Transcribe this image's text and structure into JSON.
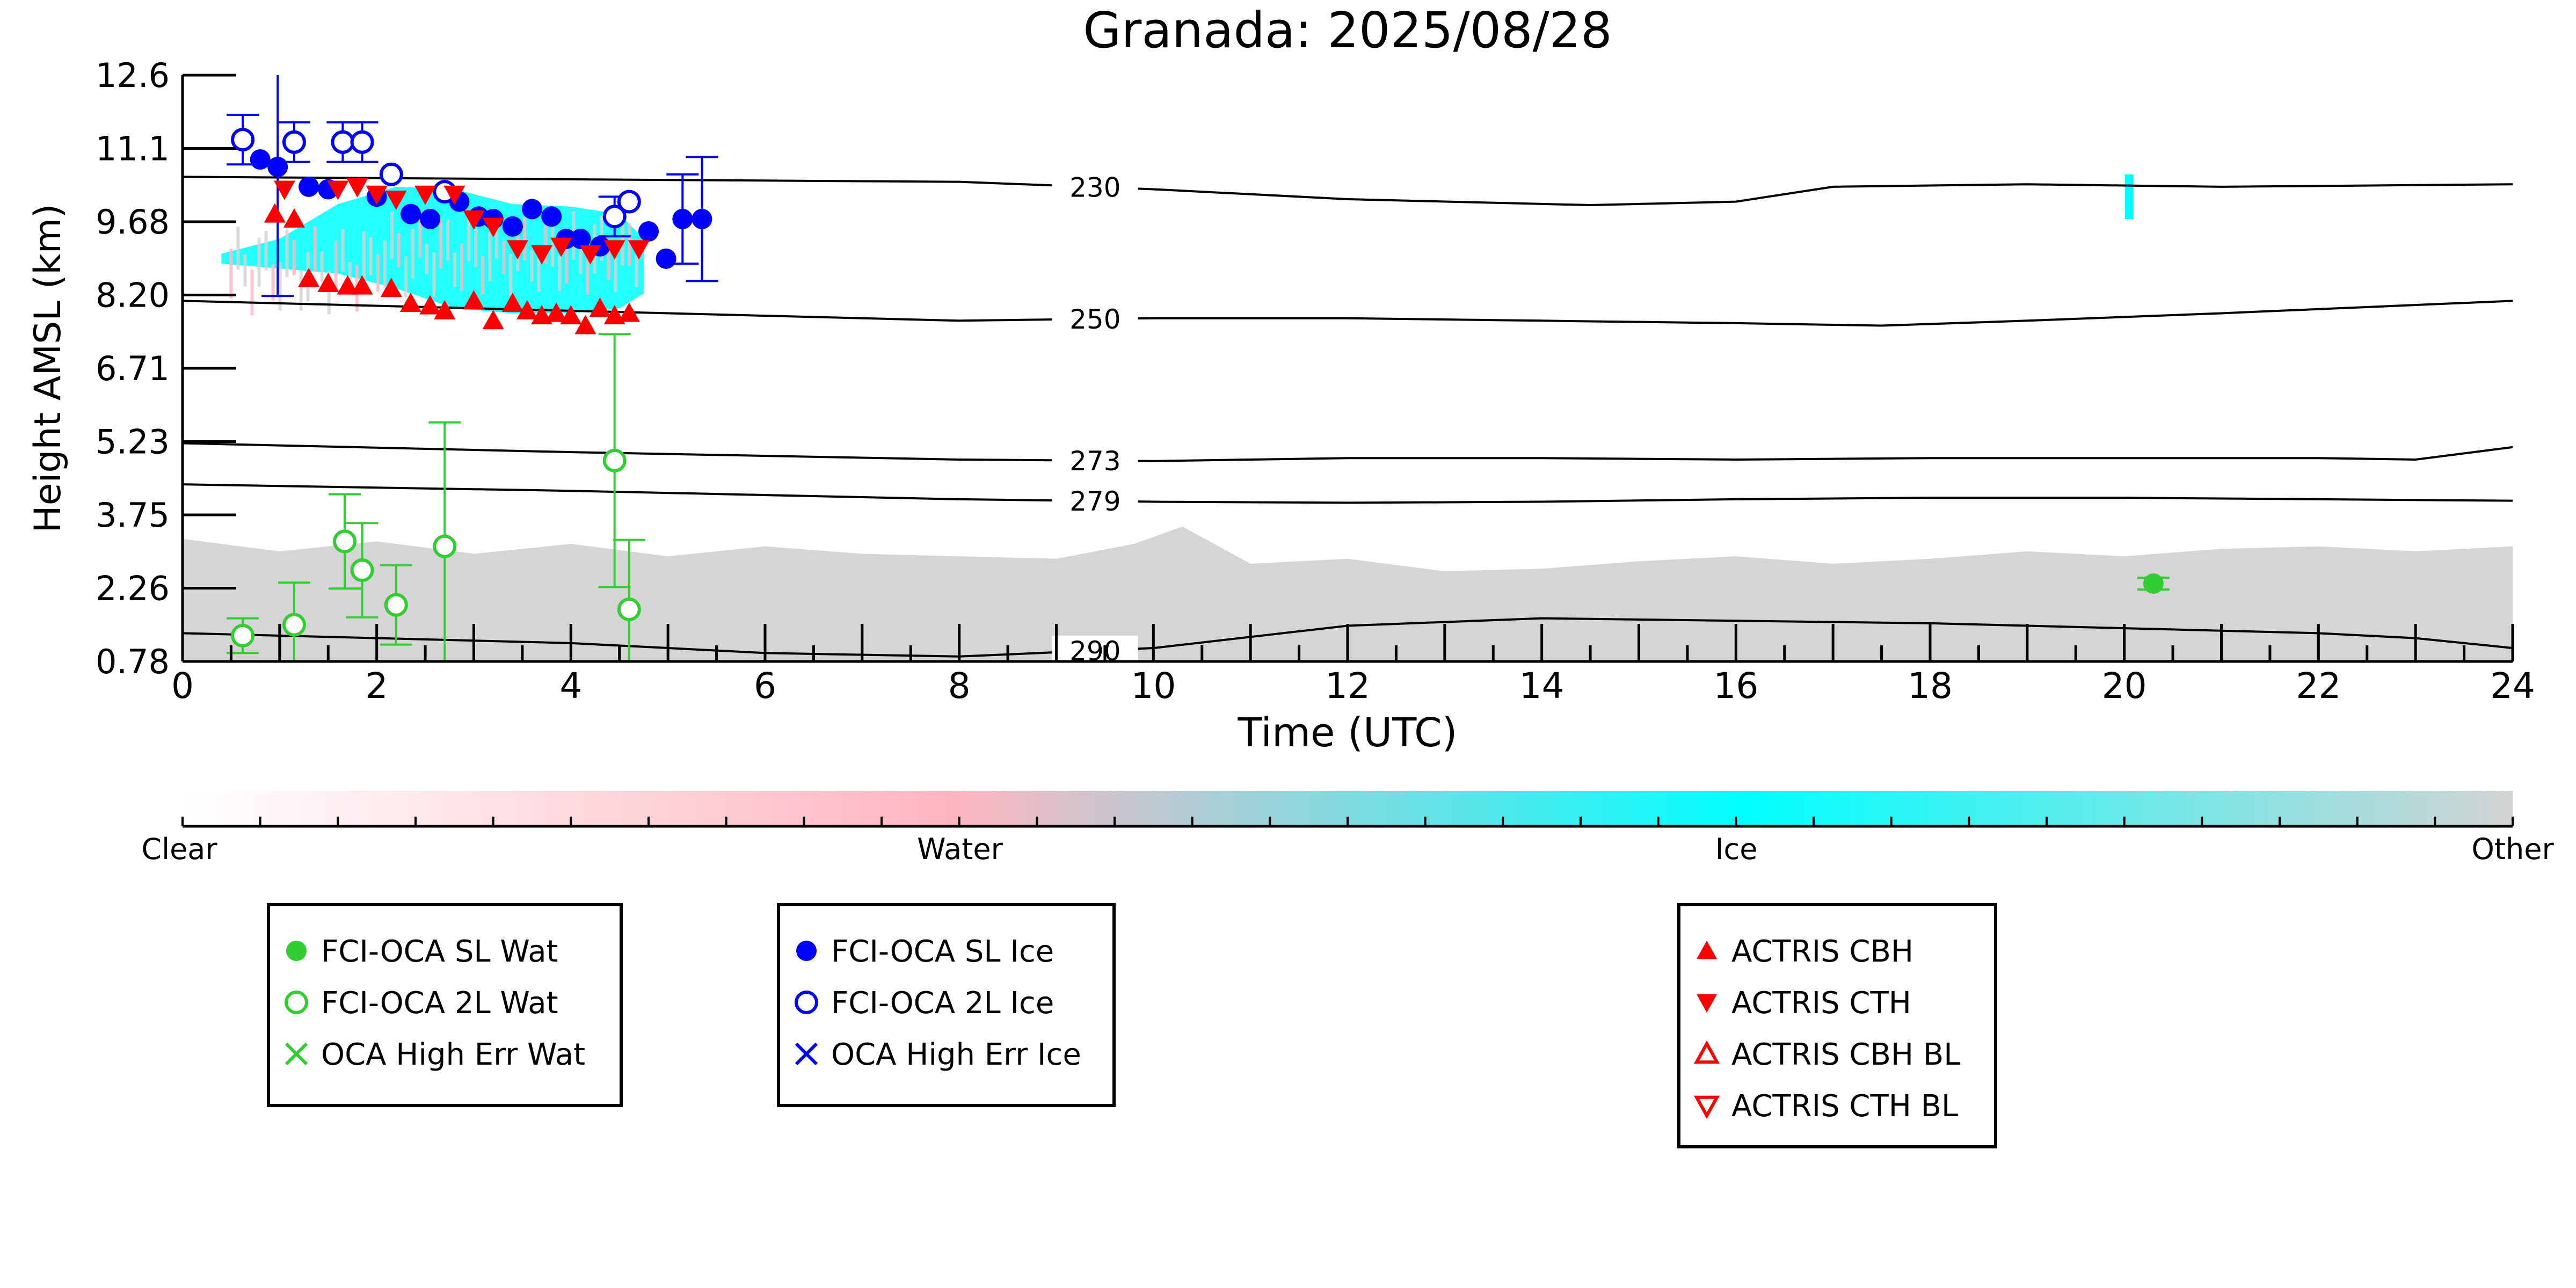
{
  "chart_data": {
    "type": "scatter",
    "title": "Granada: 2025/08/28",
    "xlabel": "Time (UTC)",
    "ylabel": "Height AMSL (km)",
    "xlim": [
      0,
      24
    ],
    "ylim": [
      0.78,
      12.6
    ],
    "x_ticks": [
      "0",
      "2",
      "4",
      "6",
      "8",
      "10",
      "12",
      "14",
      "16",
      "18",
      "20",
      "22",
      "24"
    ],
    "y_ticks": [
      "0.78",
      "2.26",
      "3.75",
      "5.23",
      "6.71",
      "8.20",
      "9.68",
      "11.1",
      "12.6"
    ],
    "colorbar": {
      "labels": [
        "Clear",
        "Water",
        "Ice",
        "Other"
      ],
      "colors": [
        "#ffffff",
        "#ffb6c1",
        "#00ffff",
        "#d3d3d3"
      ]
    },
    "isotherms": [
      {
        "label": "230",
        "label_x": 9.4,
        "points": [
          [
            0,
            10.55
          ],
          [
            4,
            10.5
          ],
          [
            8,
            10.45
          ],
          [
            10,
            10.3
          ],
          [
            12,
            10.1
          ],
          [
            14.5,
            9.98
          ],
          [
            16,
            10.05
          ],
          [
            17,
            10.35
          ],
          [
            19,
            10.4
          ],
          [
            21,
            10.35
          ],
          [
            24,
            10.4
          ]
        ]
      },
      {
        "label": "250",
        "label_x": 9.4,
        "points": [
          [
            0,
            8.05
          ],
          [
            4,
            7.85
          ],
          [
            8,
            7.65
          ],
          [
            10,
            7.7
          ],
          [
            12,
            7.7
          ],
          [
            14,
            7.65
          ],
          [
            16,
            7.6
          ],
          [
            17.5,
            7.55
          ],
          [
            19,
            7.65
          ],
          [
            21,
            7.8
          ],
          [
            24,
            8.05
          ]
        ]
      },
      {
        "label": "273",
        "label_x": 9.4,
        "points": [
          [
            0,
            5.18
          ],
          [
            4,
            5.0
          ],
          [
            8,
            4.85
          ],
          [
            10,
            4.82
          ],
          [
            12,
            4.88
          ],
          [
            14,
            4.88
          ],
          [
            16,
            4.85
          ],
          [
            18,
            4.88
          ],
          [
            20,
            4.88
          ],
          [
            22,
            4.88
          ],
          [
            23,
            4.85
          ],
          [
            24,
            5.1
          ]
        ]
      },
      {
        "label": "279",
        "label_x": 9.4,
        "points": [
          [
            0,
            4.35
          ],
          [
            4,
            4.22
          ],
          [
            8,
            4.05
          ],
          [
            10,
            4.0
          ],
          [
            12,
            3.98
          ],
          [
            14,
            4.0
          ],
          [
            16,
            4.05
          ],
          [
            18,
            4.08
          ],
          [
            20,
            4.08
          ],
          [
            22,
            4.05
          ],
          [
            24,
            4.02
          ]
        ]
      },
      {
        "label": "290",
        "label_x": 9.4,
        "points": [
          [
            0,
            1.35
          ],
          [
            4,
            1.15
          ],
          [
            6,
            0.95
          ],
          [
            8,
            0.88
          ],
          [
            10,
            1.05
          ],
          [
            12,
            1.5
          ],
          [
            14,
            1.65
          ],
          [
            16,
            1.6
          ],
          [
            18,
            1.55
          ],
          [
            20,
            1.45
          ],
          [
            22,
            1.35
          ],
          [
            23,
            1.25
          ],
          [
            24,
            1.05
          ]
        ]
      }
    ],
    "background": {
      "other_top": [
        [
          0,
          3.25
        ],
        [
          1,
          3.0
        ],
        [
          2,
          3.2
        ],
        [
          3,
          2.95
        ],
        [
          4,
          3.15
        ],
        [
          5,
          2.9
        ],
        [
          6,
          3.1
        ],
        [
          7,
          2.95
        ],
        [
          8,
          2.9
        ],
        [
          9,
          2.85
        ],
        [
          9.8,
          3.15
        ],
        [
          10.3,
          3.5
        ],
        [
          11,
          2.75
        ],
        [
          12,
          2.85
        ],
        [
          13,
          2.6
        ],
        [
          14,
          2.65
        ],
        [
          15,
          2.8
        ],
        [
          16,
          2.9
        ],
        [
          17,
          2.75
        ],
        [
          18,
          2.85
        ],
        [
          19,
          3.0
        ],
        [
          20,
          2.9
        ],
        [
          21,
          3.05
        ],
        [
          22,
          3.1
        ],
        [
          23,
          3.0
        ],
        [
          24,
          3.1
        ]
      ],
      "ice_top": [
        [
          0.4,
          9.0
        ],
        [
          1,
          9.3
        ],
        [
          1.6,
          10.0
        ],
        [
          2.2,
          10.35
        ],
        [
          2.8,
          10.3
        ],
        [
          3.4,
          10.0
        ],
        [
          4.0,
          9.95
        ],
        [
          4.5,
          9.8
        ],
        [
          4.75,
          9.3
        ]
      ],
      "ice_bottom": [
        [
          0.4,
          8.8
        ],
        [
          1,
          8.7
        ],
        [
          1.6,
          8.6
        ],
        [
          2.2,
          8.3
        ],
        [
          2.8,
          7.9
        ],
        [
          3.4,
          7.8
        ],
        [
          4.0,
          7.8
        ],
        [
          4.5,
          7.9
        ],
        [
          4.75,
          8.2
        ]
      ],
      "ice_patch_20h": {
        "x": 20.05,
        "y_top": 10.6,
        "y_bottom": 9.7
      }
    },
    "series": [
      {
        "name": "FCI-OCA SL Wat",
        "marker": "filled-circle",
        "color": "#32cd32",
        "points": [
          {
            "x": 20.3,
            "y": 2.35,
            "err": 0.12
          }
        ]
      },
      {
        "name": "FCI-OCA 2L Wat",
        "marker": "open-circle",
        "color": "#32cd32",
        "points": [
          {
            "x": 0.62,
            "y": 1.3,
            "err": 0.35
          },
          {
            "x": 1.15,
            "y": 1.52,
            "err": 0.85
          },
          {
            "x": 1.67,
            "y": 3.2,
            "err": 0.95
          },
          {
            "x": 1.85,
            "y": 2.62,
            "err": 0.95
          },
          {
            "x": 2.2,
            "y": 1.92,
            "err": 0.8
          },
          {
            "x": 2.7,
            "y": 3.1,
            "err": 2.5
          },
          {
            "x": 4.45,
            "y": 4.83,
            "err": 2.55
          },
          {
            "x": 4.6,
            "y": 1.83,
            "err": 1.4
          }
        ]
      },
      {
        "name": "OCA High Err Wat",
        "marker": "x",
        "color": "#32cd32",
        "points": []
      },
      {
        "name": "FCI-OCA SL Ice",
        "marker": "filled-circle",
        "color": "#0000ff",
        "points": [
          {
            "x": 0.8,
            "y": 10.9,
            "err": 0
          },
          {
            "x": 0.98,
            "y": 10.75,
            "err": 2.6
          },
          {
            "x": 1.3,
            "y": 10.35,
            "err": 0
          },
          {
            "x": 1.5,
            "y": 10.3,
            "err": 0
          },
          {
            "x": 2.0,
            "y": 10.15,
            "err": 0
          },
          {
            "x": 2.35,
            "y": 9.8,
            "err": 0
          },
          {
            "x": 2.55,
            "y": 9.7,
            "err": 0
          },
          {
            "x": 2.85,
            "y": 10.05,
            "err": 0
          },
          {
            "x": 3.05,
            "y": 9.75,
            "err": 0
          },
          {
            "x": 3.2,
            "y": 9.7,
            "err": 0
          },
          {
            "x": 3.4,
            "y": 9.55,
            "err": 0
          },
          {
            "x": 3.6,
            "y": 9.9,
            "err": 0
          },
          {
            "x": 3.8,
            "y": 9.75,
            "err": 0
          },
          {
            "x": 3.95,
            "y": 9.3,
            "err": 0
          },
          {
            "x": 4.1,
            "y": 9.3,
            "err": 0
          },
          {
            "x": 4.3,
            "y": 9.15,
            "err": 0
          },
          {
            "x": 4.8,
            "y": 9.45,
            "err": 0
          },
          {
            "x": 4.98,
            "y": 8.9,
            "err": 0
          },
          {
            "x": 5.15,
            "y": 9.7,
            "err": 0.9
          },
          {
            "x": 5.35,
            "y": 9.7,
            "err": 1.25
          }
        ]
      },
      {
        "name": "FCI-OCA 2L Ice",
        "marker": "open-circle",
        "color": "#0000ff",
        "points": [
          {
            "x": 0.62,
            "y": 11.3,
            "err": 0.5
          },
          {
            "x": 1.15,
            "y": 11.25,
            "err": 0.4
          },
          {
            "x": 1.65,
            "y": 11.25,
            "err": 0.4
          },
          {
            "x": 1.85,
            "y": 11.25,
            "err": 0.4
          },
          {
            "x": 2.15,
            "y": 10.6,
            "err": 0
          },
          {
            "x": 2.7,
            "y": 10.25,
            "err": 0
          },
          {
            "x": 4.45,
            "y": 9.75,
            "err": 0.4
          },
          {
            "x": 4.6,
            "y": 10.05,
            "err": 0
          }
        ]
      },
      {
        "name": "OCA High Err Ice",
        "marker": "x",
        "color": "#0000ff",
        "points": []
      },
      {
        "name": "ACTRIS CBH",
        "marker": "triangle-up",
        "color": "#ff0000",
        "points": [
          {
            "x": 0.95,
            "y": 9.8
          },
          {
            "x": 1.15,
            "y": 9.7
          },
          {
            "x": 1.3,
            "y": 8.5
          },
          {
            "x": 1.5,
            "y": 8.4
          },
          {
            "x": 1.7,
            "y": 8.35
          },
          {
            "x": 1.85,
            "y": 8.35
          },
          {
            "x": 2.15,
            "y": 8.3
          },
          {
            "x": 2.35,
            "y": 8.0
          },
          {
            "x": 2.55,
            "y": 7.95
          },
          {
            "x": 2.7,
            "y": 7.85
          },
          {
            "x": 3.0,
            "y": 8.05
          },
          {
            "x": 3.2,
            "y": 7.65
          },
          {
            "x": 3.4,
            "y": 8.0
          },
          {
            "x": 3.55,
            "y": 7.85
          },
          {
            "x": 3.7,
            "y": 7.75
          },
          {
            "x": 3.85,
            "y": 7.8
          },
          {
            "x": 4.0,
            "y": 7.75
          },
          {
            "x": 4.15,
            "y": 7.55
          },
          {
            "x": 4.3,
            "y": 7.9
          },
          {
            "x": 4.45,
            "y": 7.75
          },
          {
            "x": 4.6,
            "y": 7.8
          }
        ]
      },
      {
        "name": "ACTRIS CTH",
        "marker": "triangle-down",
        "color": "#ff0000",
        "points": [
          {
            "x": 1.05,
            "y": 10.3
          },
          {
            "x": 1.6,
            "y": 10.3
          },
          {
            "x": 1.8,
            "y": 10.35
          },
          {
            "x": 2.0,
            "y": 10.2
          },
          {
            "x": 2.2,
            "y": 10.1
          },
          {
            "x": 2.5,
            "y": 10.2
          },
          {
            "x": 2.8,
            "y": 10.2
          },
          {
            "x": 3.0,
            "y": 9.7
          },
          {
            "x": 3.2,
            "y": 9.55
          },
          {
            "x": 3.45,
            "y": 9.1
          },
          {
            "x": 3.7,
            "y": 9.0
          },
          {
            "x": 3.9,
            "y": 9.15
          },
          {
            "x": 4.2,
            "y": 9.0
          },
          {
            "x": 4.45,
            "y": 9.1
          },
          {
            "x": 4.7,
            "y": 9.1
          }
        ]
      },
      {
        "name": "ACTRIS CBH BL",
        "marker": "open-triangle-up",
        "color": "#ff0000",
        "points": []
      },
      {
        "name": "ACTRIS CTH BL",
        "marker": "open-triangle-down",
        "color": "#ff0000",
        "points": []
      }
    ],
    "legend_groups": [
      [
        "FCI-OCA SL Wat",
        "FCI-OCA 2L Wat",
        "OCA High Err Wat"
      ],
      [
        "FCI-OCA SL Ice",
        "FCI-OCA 2L Ice",
        "OCA High Err Ice"
      ],
      [
        "ACTRIS CBH",
        "ACTRIS CTH",
        "ACTRIS CBH BL",
        "ACTRIS CTH BL"
      ]
    ],
    "grid": false,
    "legend_placement": "bottom"
  }
}
